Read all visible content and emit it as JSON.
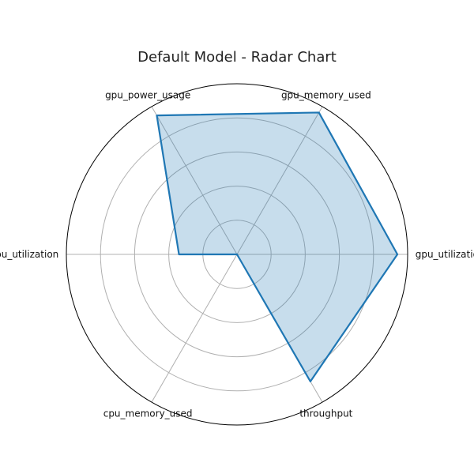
{
  "chart_data": {
    "type": "radar",
    "title": "Default Model  - Radar Chart",
    "categories": [
      "gpu_utilization",
      "gpu_memory_used",
      "gpu_power_usage",
      "cpu_utilization",
      "cpu_memory_used",
      "throughput"
    ],
    "series": [
      {
        "values": [
          0.94,
          0.96,
          0.94,
          0.34,
          0.0,
          0.86
        ]
      }
    ],
    "rlim": [
      0,
      1
    ],
    "rgrid": [
      0.2,
      0.4,
      0.6,
      0.8
    ],
    "grid": true,
    "colors": {
      "line": "#1f77b4",
      "fill": "#1f77b4",
      "grid": "#b0b0b0",
      "frame": "#000000"
    }
  }
}
